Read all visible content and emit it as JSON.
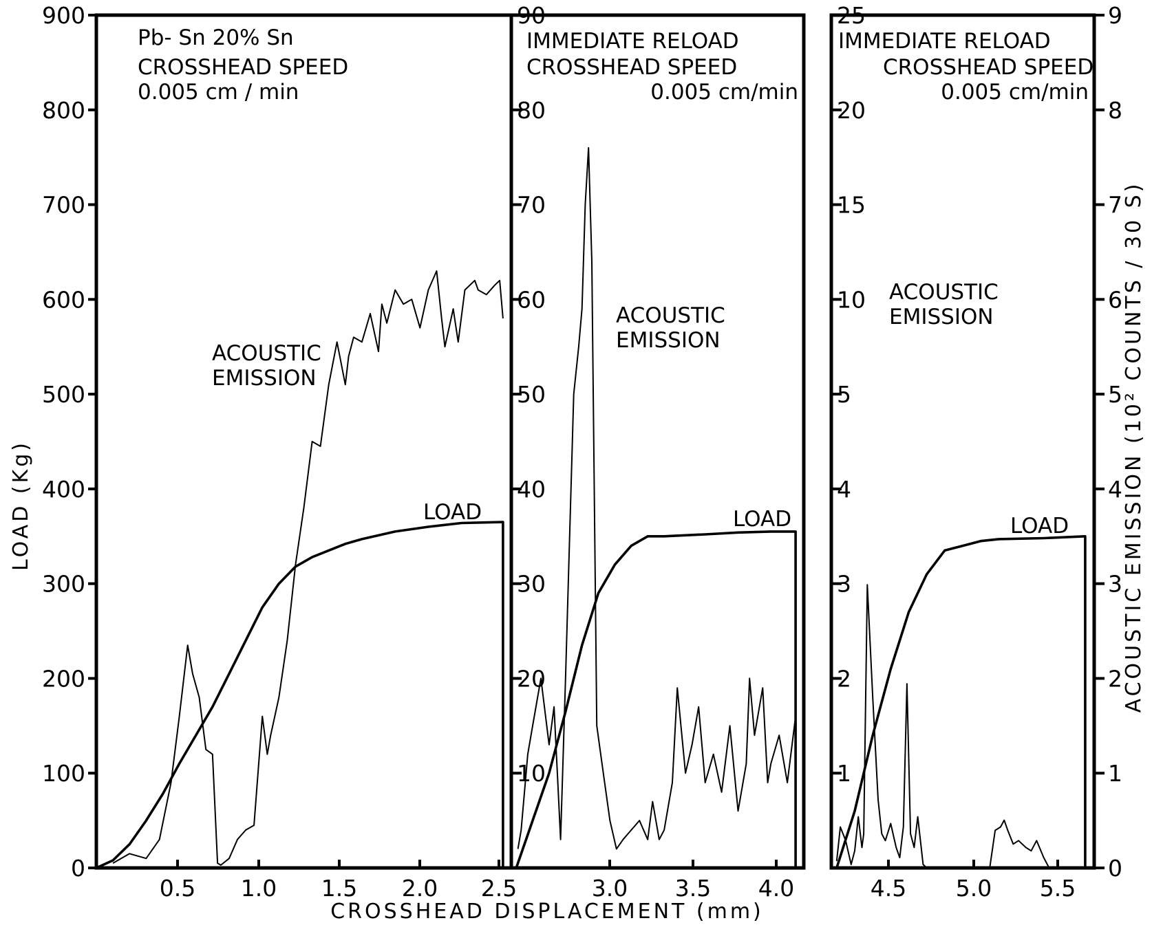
{
  "chart_data": {
    "type": "line",
    "xlabel": "CROSSHEAD DISPLACEMENT (mm)",
    "ylabel_left": "LOAD (Kg)",
    "ylabel_right": "ACOUSTIC EMISSION (10² COUNTS / 30 S)",
    "grid": false,
    "load_axis": {
      "ylim": [
        0,
        900
      ],
      "ticks": [
        "0",
        "100",
        "200",
        "300",
        "400",
        "500",
        "600",
        "700",
        "800",
        "900"
      ]
    },
    "emission_axis_right": {
      "ylim": [
        0,
        9
      ],
      "ticks": [
        "0",
        "1",
        "2",
        "3",
        "4",
        "5",
        "6",
        "7",
        "8",
        "9"
      ]
    },
    "panels": [
      {
        "name": "panel-1",
        "xlim": [
          0,
          2.5
        ],
        "x_ticks": [
          "0.5",
          "1.0",
          "1.5",
          "2.0",
          "2.5"
        ],
        "emission_ylim": [
          0,
          900
        ],
        "annotations": {
          "title_line1": "Pb- Sn 20% Sn",
          "title_line2": "CROSSHEAD SPEED",
          "title_line3": "0.005 cm / min",
          "emission_label_1": "ACOUSTIC",
          "emission_label_2": "EMISSION",
          "load_label": "LOAD"
        },
        "series": [
          {
            "role": "load",
            "x": [
              0,
              0.1,
              0.2,
              0.3,
              0.4,
              0.5,
              0.6,
              0.7,
              0.8,
              0.9,
              1.0,
              1.1,
              1.2,
              1.3,
              1.4,
              1.5,
              1.6,
              1.8,
              2.0,
              2.2,
              2.45,
              2.45
            ],
            "values": [
              0,
              8,
              25,
              50,
              78,
              110,
              140,
              170,
              205,
              240,
              275,
              300,
              318,
              328,
              335,
              342,
              347,
              355,
              360,
              364,
              365,
              0
            ]
          },
          {
            "role": "acoustic-emission",
            "x": [
              0.1,
              0.2,
              0.3,
              0.38,
              0.45,
              0.5,
              0.55,
              0.58,
              0.62,
              0.66,
              0.7,
              0.73,
              0.75,
              0.8,
              0.85,
              0.9,
              0.95,
              1.0,
              1.03,
              1.05,
              1.1,
              1.15,
              1.2,
              1.25,
              1.3,
              1.35,
              1.4,
              1.45,
              1.5,
              1.52,
              1.55,
              1.6,
              1.65,
              1.7,
              1.72,
              1.75,
              1.8,
              1.85,
              1.9,
              1.95,
              2.0,
              2.05,
              2.08,
              2.1,
              2.15,
              2.18,
              2.22,
              2.28,
              2.3,
              2.35,
              2.4,
              2.43,
              2.45
            ],
            "values": [
              5,
              15,
              10,
              30,
              90,
              160,
              235,
              205,
              180,
              125,
              120,
              5,
              3,
              10,
              30,
              40,
              45,
              160,
              120,
              140,
              180,
              240,
              320,
              380,
              450,
              445,
              510,
              555,
              510,
              540,
              560,
              555,
              585,
              545,
              595,
              575,
              610,
              595,
              600,
              570,
              610,
              630,
              580,
              550,
              590,
              555,
              610,
              620,
              610,
              605,
              615,
              620,
              580
            ]
          }
        ]
      },
      {
        "name": "panel-2",
        "x_ticks": [
          "3.0",
          "3.5",
          "4.0"
        ],
        "xlim": [
          2.52,
          4.3
        ],
        "left_ticks": [
          "10",
          "20",
          "30",
          "40",
          "50",
          "60",
          "70",
          "80",
          "90"
        ],
        "emission_ylim": [
          0,
          90
        ],
        "annotations": {
          "title_line1": "IMMEDIATE RELOAD",
          "title_line2": "CROSSHEAD SPEED",
          "title_line3": "0.005 cm/min",
          "emission_label_1": "ACOUSTIC",
          "emission_label_2": "EMISSION",
          "load_label": "LOAD"
        },
        "series": [
          {
            "role": "load",
            "x": [
              2.55,
              2.65,
              2.75,
              2.85,
              2.95,
              3.05,
              3.15,
              3.25,
              3.35,
              3.45,
              3.7,
              3.9,
              4.1,
              4.25,
              4.25
            ],
            "values": [
              0,
              50,
              100,
              165,
              235,
              290,
              320,
              340,
              350,
              350,
              352,
              354,
              355,
              355,
              0
            ]
          },
          {
            "role": "acoustic-emission",
            "x": [
              2.56,
              2.58,
              2.62,
              2.65,
              2.7,
              2.75,
              2.78,
              2.8,
              2.82,
              2.85,
              2.9,
              2.93,
              2.95,
              2.97,
              2.99,
              3.01,
              3.04,
              3.08,
              3.12,
              3.16,
              3.2,
              3.25,
              3.3,
              3.35,
              3.38,
              3.42,
              3.45,
              3.5,
              3.53,
              3.58,
              3.62,
              3.66,
              3.7,
              3.75,
              3.8,
              3.85,
              3.9,
              3.95,
              3.97,
              4.0,
              4.05,
              4.08,
              4.1,
              4.15,
              4.2,
              4.25
            ],
            "values": [
              2,
              4,
              12,
              15,
              20,
              13,
              17,
              10,
              3,
              20,
              50,
              55,
              59,
              70,
              76,
              64,
              15,
              10,
              5,
              2,
              3,
              4,
              5,
              3,
              7,
              3,
              4,
              9,
              19,
              10,
              13,
              17,
              9,
              12,
              8,
              15,
              6,
              11,
              20,
              14,
              19,
              9,
              11,
              14,
              9,
              16
            ]
          }
        ]
      },
      {
        "name": "panel-3",
        "x_ticks": [
          "4.5",
          "5.0",
          "5.5"
        ],
        "xlim": [
          4.32,
          5.78
        ],
        "left_ticks": [
          "1",
          "2",
          "3",
          "4",
          "5",
          "10",
          "15",
          "20",
          "25"
        ],
        "emission_ylim": [
          0,
          25
        ],
        "annotations": {
          "title_line1": "IMMEDIATE RELOAD",
          "title_line2": "CROSSHEAD SPEED",
          "title_line3": "0.005 cm/min",
          "emission_label_1": "ACOUSTIC",
          "emission_label_2": "EMISSION",
          "load_label": "LOAD"
        },
        "series": [
          {
            "role": "load",
            "x": [
              4.35,
              4.45,
              4.55,
              4.65,
              4.75,
              4.85,
              4.95,
              5.05,
              5.15,
              5.25,
              5.5,
              5.73,
              5.73
            ],
            "values": [
              0,
              60,
              140,
              210,
              270,
              310,
              335,
              340,
              345,
              347,
              348,
              350,
              0
            ]
          },
          {
            "role": "acoustic-emission",
            "x": [
              4.35,
              4.37,
              4.4,
              4.43,
              4.45,
              4.47,
              4.49,
              4.5,
              4.52,
              4.55,
              4.58,
              4.6,
              4.62,
              4.65,
              4.68,
              4.7,
              4.72,
              4.74,
              4.76,
              4.78,
              4.8,
              4.83,
              4.85,
              5.2,
              5.23,
              5.26,
              5.28,
              5.3,
              5.33,
              5.36,
              5.4,
              5.43,
              5.46,
              5.5,
              5.53
            ],
            "values": [
              0.2,
              1.2,
              0.8,
              0.1,
              0.5,
              1.5,
              0.6,
              1.0,
              8.3,
              5.0,
              2.0,
              1.0,
              0.8,
              1.3,
              0.6,
              0.3,
              1.2,
              5.4,
              1.0,
              0.6,
              1.5,
              0.1,
              0,
              0,
              1.1,
              1.2,
              1.4,
              1.1,
              0.7,
              0.8,
              0.6,
              0.5,
              0.8,
              0.3,
              0
            ]
          }
        ]
      }
    ]
  }
}
